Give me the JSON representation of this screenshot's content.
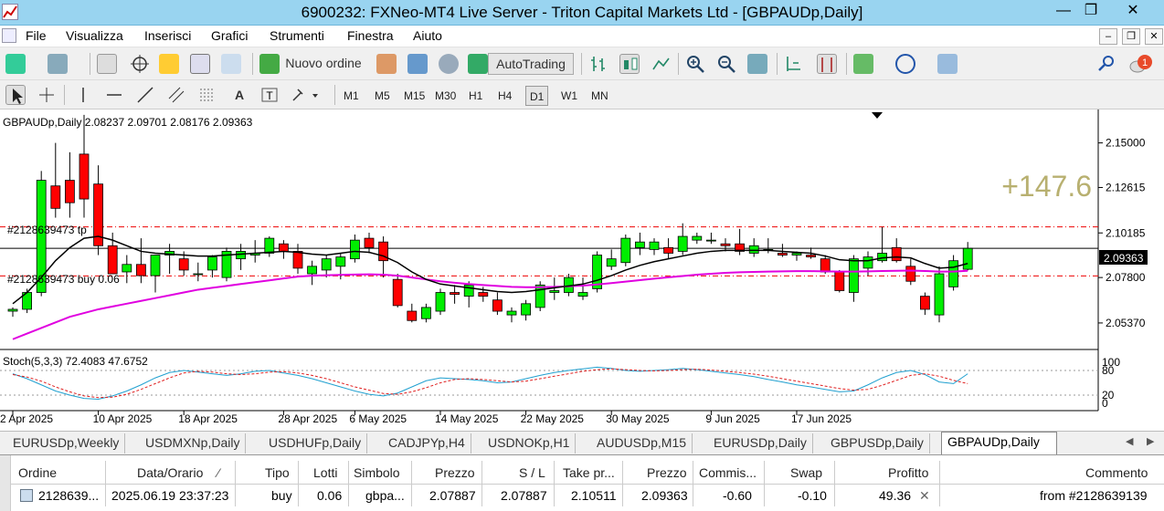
{
  "window": {
    "title": "6900232: FXNeo-MT4 Live Server - Triton Capital Markets Ltd - [GBPAUDp,Daily]"
  },
  "menu": [
    "File",
    "Visualizza",
    "Inserisci",
    "Grafici",
    "Strumenti",
    "Finestra",
    "Aiuto"
  ],
  "toolbar": {
    "new_order_label": "Nuovo ordine",
    "autotrading_label": "AutoTrading",
    "notification_count": "1"
  },
  "timeframes": [
    "M1",
    "M5",
    "M15",
    "M30",
    "H1",
    "H4",
    "D1",
    "W1",
    "MN"
  ],
  "active_timeframe": "D1",
  "chart": {
    "header": "GBPAUDp,Daily  2.08237 2.09701 2.08176 2.09363",
    "profit_overlay": "+147.6",
    "order_label_tp": "#2128639473 tp",
    "order_label_buy": "#2128639473 buy 0.06",
    "current_price": "2.09363",
    "price_ticks": [
      "2.15000",
      "2.12615",
      "2.10185",
      "2.07800",
      "2.05370"
    ],
    "date_ticks": [
      "2 Apr 2025",
      "10 Apr 2025",
      "18 Apr 2025",
      "28 Apr 2025",
      "6 May 2025",
      "14 May 2025",
      "22 May 2025",
      "30 May 2025",
      "9 Jun 2025",
      "17 Jun 2025"
    ],
    "stoch_header": "Stoch(5,3,3) 72.4083 47.6752",
    "stoch_ticks": [
      "100",
      "80",
      "20",
      "0"
    ]
  },
  "chart_data": {
    "type": "candlestick",
    "title": "GBPAUDp,Daily",
    "ylim": [
      2.04,
      2.162
    ],
    "candles": [
      [
        2.06,
        2.062,
        2.057,
        2.061
      ],
      [
        2.061,
        2.072,
        2.059,
        2.07
      ],
      [
        2.07,
        2.135,
        2.068,
        2.13
      ],
      [
        2.127,
        2.15,
        2.11,
        2.115
      ],
      [
        2.13,
        2.145,
        2.11,
        2.118
      ],
      [
        2.144,
        2.165,
        2.11,
        2.12
      ],
      [
        2.128,
        2.138,
        2.09,
        2.095
      ],
      [
        2.095,
        2.102,
        2.08,
        2.08
      ],
      [
        2.081,
        2.09,
        2.075,
        2.085
      ],
      [
        2.085,
        2.099,
        2.075,
        2.079
      ],
      [
        2.079,
        2.09,
        2.07,
        2.09
      ],
      [
        2.09,
        2.096,
        2.08,
        2.092
      ],
      [
        2.088,
        2.092,
        2.079,
        2.082
      ],
      [
        2.08,
        2.086,
        2.076,
        2.08
      ],
      [
        2.082,
        2.09,
        2.078,
        2.089
      ],
      [
        2.078,
        2.094,
        2.076,
        2.092
      ],
      [
        2.088,
        2.096,
        2.082,
        2.092
      ],
      [
        2.09,
        2.098,
        2.086,
        2.091
      ],
      [
        2.091,
        2.1,
        2.089,
        2.099
      ],
      [
        2.096,
        2.098,
        2.088,
        2.092
      ],
      [
        2.092,
        2.096,
        2.08,
        2.083
      ],
      [
        2.08,
        2.087,
        2.074,
        2.084
      ],
      [
        2.082,
        2.09,
        2.078,
        2.088
      ],
      [
        2.084,
        2.091,
        2.077,
        2.089
      ],
      [
        2.088,
        2.101,
        2.086,
        2.098
      ],
      [
        2.099,
        2.102,
        2.091,
        2.094
      ],
      [
        2.097,
        2.1,
        2.078,
        2.087
      ],
      [
        2.077,
        2.08,
        2.062,
        2.063
      ],
      [
        2.06,
        2.064,
        2.054,
        2.055
      ],
      [
        2.056,
        2.064,
        2.054,
        2.062
      ],
      [
        2.06,
        2.072,
        2.058,
        2.07
      ],
      [
        2.07,
        2.074,
        2.064,
        2.069
      ],
      [
        2.068,
        2.076,
        2.062,
        2.074
      ],
      [
        2.07,
        2.073,
        2.065,
        2.068
      ],
      [
        2.066,
        2.07,
        2.058,
        2.06
      ],
      [
        2.058,
        2.062,
        2.054,
        2.06
      ],
      [
        2.058,
        2.066,
        2.055,
        2.064
      ],
      [
        2.062,
        2.076,
        2.06,
        2.074
      ],
      [
        2.07,
        2.078,
        2.066,
        2.071
      ],
      [
        2.07,
        2.08,
        2.068,
        2.078
      ],
      [
        2.068,
        2.078,
        2.066,
        2.07
      ],
      [
        2.072,
        2.092,
        2.07,
        2.09
      ],
      [
        2.084,
        2.093,
        2.082,
        2.088
      ],
      [
        2.086,
        2.101,
        2.084,
        2.099
      ],
      [
        2.094,
        2.102,
        2.09,
        2.097
      ],
      [
        2.093,
        2.099,
        2.09,
        2.097
      ],
      [
        2.094,
        2.099,
        2.088,
        2.091
      ],
      [
        2.092,
        2.107,
        2.09,
        2.1
      ],
      [
        2.098,
        2.102,
        2.096,
        2.1
      ],
      [
        2.098,
        2.102,
        2.096,
        2.098
      ],
      [
        2.096,
        2.099,
        2.092,
        2.095
      ],
      [
        2.096,
        2.104,
        2.09,
        2.092
      ],
      [
        2.091,
        2.099,
        2.089,
        2.095
      ],
      [
        2.093,
        2.099,
        2.091,
        2.093
      ],
      [
        2.091,
        2.096,
        2.089,
        2.09
      ],
      [
        2.09,
        2.092,
        2.087,
        2.091
      ],
      [
        2.09,
        2.094,
        2.088,
        2.089
      ],
      [
        2.088,
        2.09,
        2.08,
        2.081
      ],
      [
        2.081,
        2.082,
        2.07,
        2.071
      ],
      [
        2.07,
        2.09,
        2.065,
        2.088
      ],
      [
        2.083,
        2.092,
        2.079,
        2.089
      ],
      [
        2.087,
        2.105,
        2.086,
        2.091
      ],
      [
        2.094,
        2.099,
        2.086,
        2.087
      ],
      [
        2.084,
        2.088,
        2.074,
        2.076
      ],
      [
        2.068,
        2.07,
        2.058,
        2.061
      ],
      [
        2.058,
        2.084,
        2.054,
        2.08
      ],
      [
        2.073,
        2.09,
        2.071,
        2.087
      ],
      [
        2.0824,
        2.097,
        2.0818,
        2.0936
      ]
    ],
    "ma_black": [
      2.064,
      2.07,
      2.078,
      2.087,
      2.094,
      2.099,
      2.1,
      2.098,
      2.095,
      2.092,
      2.091,
      2.0905,
      2.09,
      2.0895,
      2.0895,
      2.09,
      2.0905,
      2.091,
      2.0915,
      2.092,
      2.0915,
      2.0905,
      2.09,
      2.091,
      2.092,
      2.0915,
      2.0895,
      2.086,
      2.081,
      2.077,
      2.0745,
      2.0735,
      2.0725,
      2.0715,
      2.0705,
      2.07,
      2.0705,
      2.0715,
      2.0725,
      2.0735,
      2.0745,
      2.0765,
      2.079,
      2.082,
      2.0845,
      2.0865,
      2.088,
      2.0895,
      2.091,
      2.092,
      2.0925,
      2.0925,
      2.0925,
      2.0925,
      2.092,
      2.0915,
      2.091,
      2.0895,
      2.0875,
      2.087,
      2.087,
      2.0885,
      2.089,
      2.0885,
      2.0855,
      2.083,
      2.0835,
      2.0855
    ],
    "ma_magenta": [
      2.045,
      2.048,
      2.051,
      2.054,
      2.057,
      2.059,
      2.061,
      2.0625,
      2.064,
      2.0655,
      2.067,
      2.0685,
      2.07,
      2.0715,
      2.0725,
      2.0735,
      2.0745,
      2.0755,
      2.0765,
      2.0775,
      2.0785,
      2.079,
      2.0792,
      2.0794,
      2.0796,
      2.0797,
      2.0795,
      2.079,
      2.078,
      2.077,
      2.076,
      2.0752,
      2.0745,
      2.074,
      2.0735,
      2.073,
      2.0728,
      2.0728,
      2.073,
      2.0733,
      2.0737,
      2.0743,
      2.075,
      2.0758,
      2.0766,
      2.0774,
      2.0781,
      2.0788,
      2.0795,
      2.08,
      2.0805,
      2.0808,
      2.081,
      2.0812,
      2.0813,
      2.0814,
      2.0814,
      2.0813,
      2.0812,
      2.0812,
      2.0813,
      2.0815,
      2.0816,
      2.0817,
      2.0815,
      2.0812,
      2.0812,
      2.0816
    ],
    "stoch_main": [
      72,
      60,
      45,
      30,
      20,
      12,
      10,
      18,
      30,
      45,
      62,
      75,
      80,
      76,
      72,
      68,
      72,
      78,
      80,
      74,
      68,
      60,
      50,
      40,
      30,
      22,
      18,
      25,
      40,
      55,
      62,
      60,
      58,
      55,
      50,
      52,
      60,
      68,
      75,
      80,
      84,
      88,
      85,
      80,
      78,
      80,
      82,
      85,
      82,
      78,
      74,
      70,
      65,
      58,
      52,
      45,
      40,
      34,
      28,
      30,
      45,
      62,
      75,
      80,
      70,
      52,
      48,
      72
    ],
    "stoch_signal": [
      70,
      64,
      54,
      40,
      28,
      18,
      14,
      15,
      22,
      34,
      48,
      62,
      74,
      78,
      76,
      72,
      70,
      72,
      76,
      77,
      74,
      68,
      60,
      50,
      40,
      32,
      24,
      22,
      28,
      38,
      50,
      58,
      60,
      58,
      55,
      52,
      54,
      60,
      66,
      72,
      78,
      82,
      84,
      82,
      80,
      79,
      80,
      82,
      83,
      81,
      78,
      75,
      71,
      66,
      60,
      54,
      48,
      42,
      36,
      32,
      34,
      44,
      56,
      68,
      72,
      66,
      56,
      48
    ],
    "stoch_ylim": [
      0,
      100
    ],
    "order_tp": 2.10511,
    "order_open": 2.07887
  },
  "tabs": [
    "EURUSDp,Weekly",
    "USDMXNp,Daily",
    "USDHUFp,Daily",
    "CADJPYp,H4",
    "USDNOKp,H1",
    "AUDUSDp,M15",
    "EURUSDp,Daily",
    "GBPUSDp,Daily",
    "GBPAUDp,Daily"
  ],
  "active_tab": "GBPAUDp,Daily",
  "terminal": {
    "headers": [
      "Ordine",
      "Data/Orario",
      "Tipo",
      "Lotti",
      "Simbolo",
      "Prezzo",
      "S / L",
      "Take pr...",
      "Prezzo",
      "Commis...",
      "Swap",
      "Profitto",
      "Commento"
    ],
    "row": [
      "2128639...",
      "2025.06.19 23:37:23",
      "buy",
      "0.06",
      "gbpa...",
      "2.07887",
      "2.07887",
      "2.10511",
      "2.09363",
      "-0.60",
      "-0.10",
      "49.36",
      "from #2128639139"
    ]
  },
  "colors": {
    "bull": "#00ee00",
    "bear": "#ff0000",
    "ma_black": "#000000",
    "ma_magenta": "#e000e0",
    "stoch_main": "#20a0d0",
    "stoch_signal": "#e02020",
    "profit": "#b8b070",
    "titlebar": "#99d4f0"
  }
}
